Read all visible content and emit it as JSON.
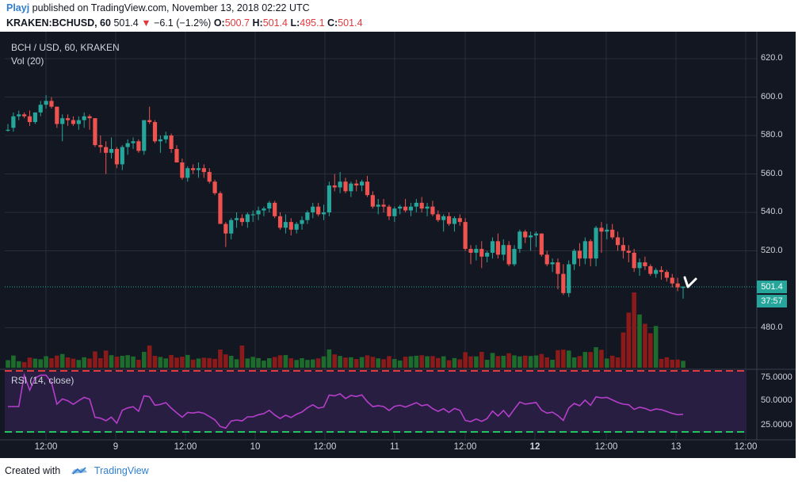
{
  "header": {
    "author": "Playj",
    "published_text": "published on TradingView.com, November 13, 2018 02:22 UTC",
    "symbol": "KRAKEN:BCHUSD, 60",
    "last": "501.4",
    "change": "−6.1 (−1.2%)",
    "o_label": "O:",
    "o": "500.7",
    "h_label": "H:",
    "h": "501.4",
    "l_label": "L:",
    "l": "495.1",
    "c_label": "C:",
    "c": "501.4"
  },
  "chart": {
    "pair_label": "BCH / USD, 60, KRAKEN",
    "volume_label": "Vol (20)",
    "price_axis": [
      "620.0",
      "600.0",
      "580.0",
      "560.0",
      "540.0",
      "520.0",
      "480.0"
    ],
    "last_price_badge": "501.4",
    "countdown_badge": "37:57",
    "rsi_label": "RSI (14, close)",
    "rsi_axis": [
      "75.0000",
      "50.0000",
      "25.0000"
    ],
    "time_axis": [
      "12:00",
      "9",
      "12:00",
      "10",
      "12:00",
      "11",
      "12:00",
      "12",
      "12:00",
      "13",
      "12:00"
    ]
  },
  "colors": {
    "up": "#26a69a",
    "down": "#ef5350",
    "background": "#131722",
    "rsi": "#b53ec9",
    "badge": "#26a69a"
  },
  "chart_data": {
    "type": "candlestick",
    "title": "BCH / USD, 60, KRAKEN",
    "ylim": [
      470,
      628
    ],
    "candles_ohlc": [
      [
        583,
        586,
        582,
        583
      ],
      [
        584,
        592,
        582,
        590
      ],
      [
        590,
        593,
        588,
        591
      ],
      [
        591,
        592,
        589,
        590
      ],
      [
        590,
        593,
        585,
        587
      ],
      [
        587,
        592,
        586,
        592
      ],
      [
        592,
        598,
        590,
        596
      ],
      [
        596,
        601,
        594,
        598
      ],
      [
        598,
        600,
        594,
        595
      ],
      [
        595,
        595,
        584,
        586
      ],
      [
        586,
        591,
        577,
        589
      ],
      [
        589,
        591,
        585,
        588
      ],
      [
        588,
        590,
        585,
        586
      ],
      [
        586,
        590,
        583,
        588
      ],
      [
        588,
        592,
        584,
        590
      ],
      [
        590,
        591,
        583,
        589
      ],
      [
        589,
        589,
        574,
        575
      ],
      [
        575,
        580,
        571,
        574
      ],
      [
        574,
        577,
        560,
        571
      ],
      [
        571,
        579,
        568,
        573
      ],
      [
        573,
        574,
        563,
        565
      ],
      [
        565,
        575,
        562,
        574
      ],
      [
        574,
        578,
        570,
        576
      ],
      [
        576,
        579,
        573,
        577
      ],
      [
        577,
        578,
        571,
        572
      ],
      [
        572,
        586,
        570,
        588
      ],
      [
        588,
        595,
        586,
        587
      ],
      [
        587,
        588,
        576,
        577
      ],
      [
        577,
        580,
        571,
        578
      ],
      [
        578,
        582,
        576,
        580
      ],
      [
        580,
        581,
        571,
        573
      ],
      [
        573,
        575,
        566,
        566
      ],
      [
        566,
        568,
        557,
        558
      ],
      [
        558,
        564,
        556,
        563
      ],
      [
        563,
        565,
        560,
        562
      ],
      [
        562,
        566,
        558,
        563
      ],
      [
        563,
        565,
        558,
        561
      ],
      [
        561,
        563,
        555,
        556
      ],
      [
        556,
        557,
        549,
        550
      ],
      [
        550,
        551,
        534,
        534
      ],
      [
        534,
        535,
        522,
        529
      ],
      [
        529,
        537,
        526,
        536
      ],
      [
        536,
        540,
        532,
        537
      ],
      [
        537,
        539,
        533,
        535
      ],
      [
        535,
        540,
        532,
        539
      ],
      [
        539,
        541,
        535,
        539
      ],
      [
        539,
        543,
        536,
        541
      ],
      [
        541,
        543,
        538,
        542
      ],
      [
        542,
        546,
        540,
        545
      ],
      [
        545,
        546,
        537,
        538
      ],
      [
        538,
        540,
        531,
        532
      ],
      [
        532,
        539,
        529,
        535
      ],
      [
        535,
        537,
        528,
        531
      ],
      [
        531,
        535,
        529,
        534
      ],
      [
        534,
        538,
        531,
        536
      ],
      [
        536,
        541,
        534,
        540
      ],
      [
        540,
        545,
        537,
        543
      ],
      [
        543,
        545,
        538,
        539
      ],
      [
        539,
        544,
        536,
        540
      ],
      [
        540,
        556,
        538,
        554
      ],
      [
        554,
        560,
        551,
        553
      ],
      [
        553,
        561,
        550,
        556
      ],
      [
        556,
        558,
        550,
        551
      ],
      [
        551,
        556,
        548,
        555
      ],
      [
        555,
        557,
        551,
        554
      ],
      [
        554,
        557,
        551,
        556
      ],
      [
        556,
        559,
        548,
        549
      ],
      [
        549,
        551,
        542,
        543
      ],
      [
        543,
        547,
        539,
        544
      ],
      [
        544,
        547,
        540,
        543
      ],
      [
        543,
        544,
        536,
        538
      ],
      [
        538,
        543,
        535,
        542
      ],
      [
        542,
        544,
        539,
        543
      ],
      [
        543,
        547,
        540,
        541
      ],
      [
        541,
        545,
        538,
        543
      ],
      [
        543,
        547,
        540,
        545
      ],
      [
        545,
        548,
        540,
        542
      ],
      [
        542,
        545,
        538,
        543
      ],
      [
        543,
        546,
        538,
        539
      ],
      [
        539,
        541,
        535,
        536
      ],
      [
        536,
        539,
        530,
        538
      ],
      [
        538,
        540,
        533,
        534
      ],
      [
        534,
        538,
        530,
        537
      ],
      [
        537,
        539,
        533,
        535
      ],
      [
        535,
        537,
        520,
        521
      ],
      [
        521,
        523,
        513,
        519
      ],
      [
        519,
        523,
        515,
        521
      ],
      [
        521,
        525,
        511,
        517
      ],
      [
        517,
        520,
        514,
        519
      ],
      [
        519,
        527,
        516,
        525
      ],
      [
        525,
        529,
        516,
        518
      ],
      [
        518,
        526,
        515,
        523
      ],
      [
        523,
        525,
        512,
        513
      ],
      [
        513,
        523,
        512,
        521
      ],
      [
        521,
        531,
        519,
        530
      ],
      [
        530,
        531,
        524,
        527
      ],
      [
        527,
        530,
        520,
        528
      ],
      [
        528,
        530,
        522,
        529
      ],
      [
        529,
        529,
        517,
        518
      ],
      [
        518,
        520,
        512,
        513
      ],
      [
        513,
        516,
        509,
        514
      ],
      [
        514,
        516,
        500,
        508
      ],
      [
        508,
        513,
        497,
        498
      ],
      [
        498,
        515,
        496,
        513
      ],
      [
        513,
        521,
        510,
        520
      ],
      [
        520,
        524,
        512,
        516
      ],
      [
        516,
        527,
        513,
        525
      ],
      [
        525,
        526,
        512,
        516
      ],
      [
        516,
        533,
        512,
        532
      ],
      [
        532,
        535,
        519,
        530
      ],
      [
        530,
        534,
        526,
        531
      ],
      [
        531,
        534,
        526,
        527
      ],
      [
        527,
        530,
        520,
        523
      ],
      [
        523,
        527,
        516,
        520
      ],
      [
        520,
        523,
        514,
        519
      ],
      [
        519,
        521,
        509,
        511
      ],
      [
        511,
        516,
        507,
        514
      ],
      [
        514,
        517,
        510,
        512
      ],
      [
        512,
        513,
        507,
        508
      ],
      [
        508,
        511,
        506,
        510
      ],
      [
        510,
        512,
        505,
        509
      ],
      [
        509,
        510,
        504,
        506
      ],
      [
        506,
        508,
        501,
        503
      ],
      [
        503,
        506,
        499,
        501
      ],
      [
        500.7,
        501.4,
        495.1,
        501.4
      ]
    ]
  }
}
